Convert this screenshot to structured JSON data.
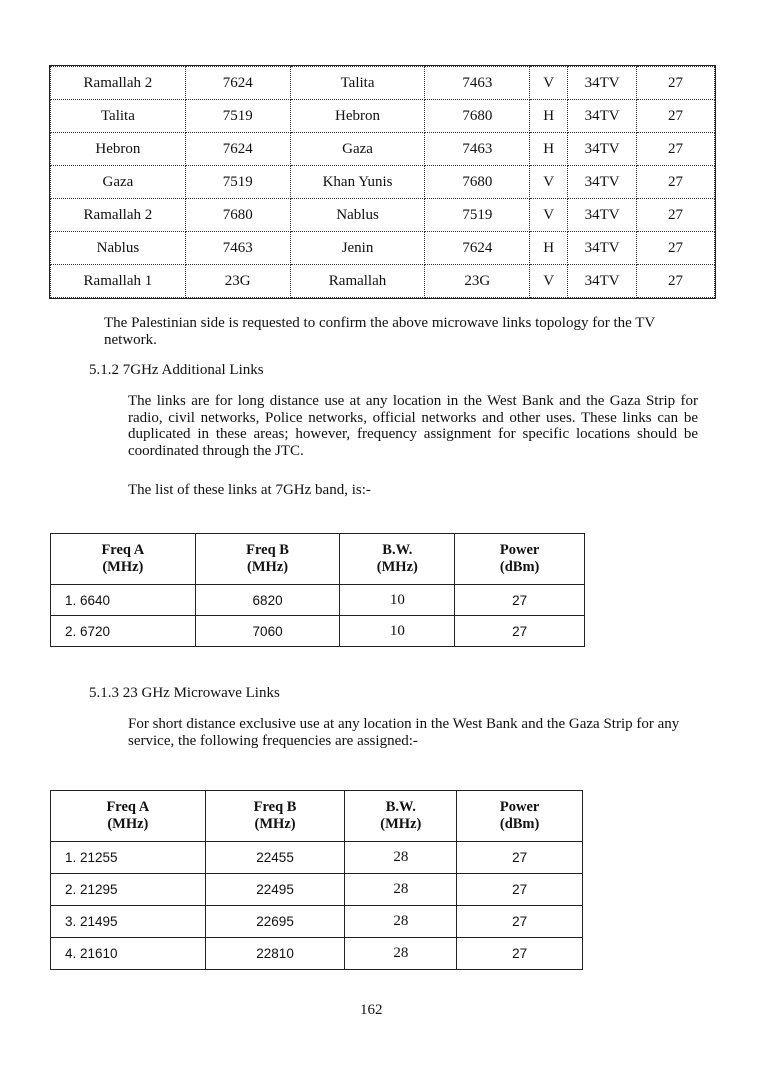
{
  "links_table": {
    "rows": [
      [
        "Ramallah 2",
        "7624",
        "Talita",
        "7463",
        "V",
        "34TV",
        "27"
      ],
      [
        "Talita",
        "7519",
        "Hebron",
        "7680",
        "H",
        "34TV",
        "27"
      ],
      [
        "Hebron",
        "7624",
        "Gaza",
        "7463",
        "H",
        "34TV",
        "27"
      ],
      [
        "Gaza",
        "7519",
        "Khan Yunis",
        "7680",
        "V",
        "34TV",
        "27"
      ],
      [
        "Ramallah 2",
        "7680",
        "Nablus",
        "7519",
        "V",
        "34TV",
        "27"
      ],
      [
        "Nablus",
        "7463",
        "Jenin",
        "7624",
        "H",
        "34TV",
        "27"
      ],
      [
        "Ramallah 1",
        "23G",
        "Ramallah",
        "23G",
        "V",
        "34TV",
        "27"
      ]
    ]
  },
  "confirm_text": "The Palestinian side is requested to confirm the above microwave links topology for the TV network.",
  "section_512": {
    "heading": "5.1.2 7GHz Additional Links",
    "paragraph": "The links are for long distance use at any location in the West Bank and the Gaza Strip for radio, civil networks, Police networks, official networks and other uses. These links can be duplicated in these areas; however, frequency assignment for specific locations should be coordinated through the JTC.",
    "list_intro": "The list of these links at 7GHz band, is:-",
    "table": {
      "headers": [
        [
          "Freq A",
          "(MHz)"
        ],
        [
          "Freq B",
          "(MHz)"
        ],
        [
          "B.W.",
          "(MHz)"
        ],
        [
          "Power",
          "(dBm)"
        ]
      ],
      "rows": [
        [
          "1. 6640",
          "6820",
          "10",
          "27"
        ],
        [
          "2. 6720",
          "7060",
          "10",
          "27"
        ]
      ]
    }
  },
  "section_513": {
    "heading": "5.1.3 23 GHz Microwave Links",
    "paragraph": "For short distance exclusive use at any location in the West Bank and the Gaza Strip for any service, the following frequencies are assigned:-",
    "table": {
      "headers": [
        [
          "Freq A",
          "(MHz)"
        ],
        [
          "Freq B",
          "(MHz)"
        ],
        [
          "B.W.",
          "(MHz)"
        ],
        [
          "Power",
          "(dBm)"
        ]
      ],
      "rows": [
        [
          "1. 21255",
          "22455",
          "28",
          "27"
        ],
        [
          "2. 21295",
          "22495",
          "28",
          "27"
        ],
        [
          "3. 21495",
          "22695",
          "28",
          "27"
        ],
        [
          "4. 21610",
          "22810",
          "28",
          "27"
        ]
      ]
    }
  },
  "page_number": "162"
}
